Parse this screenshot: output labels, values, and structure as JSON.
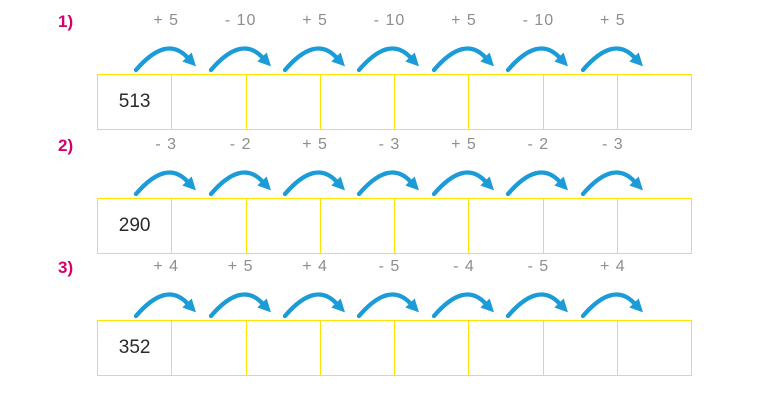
{
  "page": {
    "background": "#ffffff",
    "kind": "number sequence worksheet"
  },
  "colors": {
    "box_border": "#FFE400",
    "arrow": "#1B9BD7",
    "label": "#D4006C",
    "operation": "#8E8E8E",
    "number": "#2B2B2B"
  },
  "rows": [
    {
      "label": "1)",
      "start": "513",
      "operations": [
        "+ 5",
        "- 10",
        "+ 5",
        "- 10",
        "+ 5",
        "- 10",
        "+ 5"
      ],
      "cells": 8
    },
    {
      "label": "2)",
      "start": "290",
      "operations": [
        "- 3",
        "- 2",
        "+ 5",
        "- 3",
        "+ 5",
        "- 2",
        "- 3"
      ],
      "cells": 8
    },
    {
      "label": "3)",
      "start": "352",
      "operations": [
        "+ 4",
        "+ 5",
        "+ 4",
        "- 5",
        "- 4",
        "- 5",
        "+ 4"
      ],
      "cells": 8
    }
  ]
}
